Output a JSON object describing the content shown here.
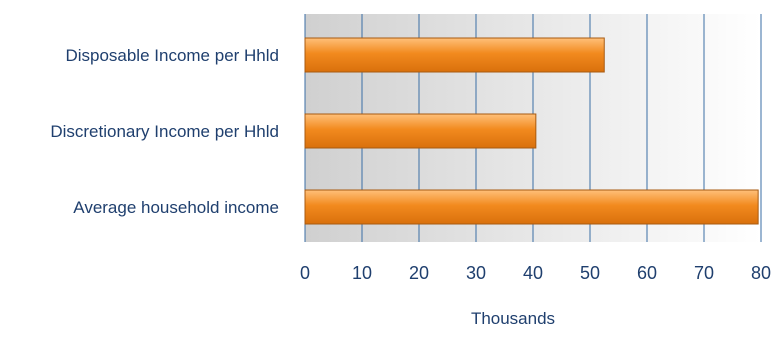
{
  "chart_data": {
    "type": "bar",
    "orientation": "horizontal",
    "categories": [
      "Disposable Income per Hhld",
      "Discretionary Income per Hhld",
      "Average household income"
    ],
    "values": [
      52.5,
      40.5,
      79.5
    ],
    "xlabel": "Thousands",
    "ylabel": "",
    "xlim": [
      0,
      80
    ],
    "x_ticks": [
      "0",
      "10",
      "20",
      "30",
      "40",
      "50",
      "60",
      "70",
      "80"
    ],
    "grid": "vertical",
    "legend": "none",
    "colors": {
      "bar": "#f28a1e",
      "bar_highlight": "#ffc07a",
      "bar_edge": "#a85a10",
      "grid": "#3a6ea5",
      "text": "#1f3f6e",
      "plot_bg_left": "#d0d0d0",
      "plot_bg_right": "#ffffff"
    }
  }
}
